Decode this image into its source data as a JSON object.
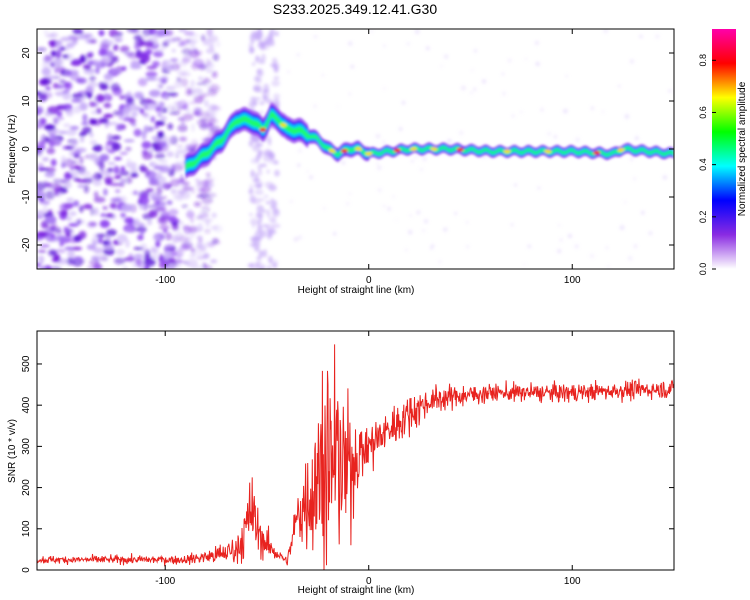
{
  "title": "S233.2025.349.12.41.G30",
  "chart_data": [
    {
      "type": "heatmap",
      "id": "spectrogram",
      "xlabel": "Height of straight line (km)",
      "ylabel": "Frequency (Hz)",
      "xlim": [
        -163,
        150
      ],
      "ylim": [
        -25,
        25
      ],
      "xticks": [
        -100,
        0,
        100
      ],
      "yticks": [
        -20,
        -10,
        0,
        10,
        20
      ],
      "colorbar": {
        "label": "Normalized spectral amplitude",
        "range": [
          0,
          0.92
        ],
        "ticks": [
          "0.0",
          "0.2",
          "0.4",
          "0.6",
          "0.8"
        ],
        "colormap": [
          "#ffffff",
          "#8a2be2",
          "#0000ff",
          "#00ffff",
          "#00ff00",
          "#ffff00",
          "#ff0000",
          "#ff00aa"
        ]
      },
      "ridge": {
        "description": "dominant frequency vs height",
        "x": [
          -90,
          -80,
          -72,
          -65,
          -58,
          -52,
          -48,
          -44,
          -40,
          -35,
          -30,
          -25,
          -20,
          -15,
          -10,
          -5,
          0,
          10,
          20,
          40,
          60,
          80,
          100,
          120,
          125,
          150
        ],
        "y": [
          -4,
          -1,
          2,
          6,
          6,
          4,
          7,
          6,
          4,
          4,
          3,
          2,
          0,
          -1,
          0,
          0,
          -1,
          -0.5,
          0,
          0,
          -0.5,
          -0.5,
          -0.5,
          -1,
          0,
          -1
        ]
      },
      "noise": {
        "x_range": [
          -163,
          -80
        ],
        "vertical_band_x": [
          -58,
          -45
        ]
      }
    },
    {
      "type": "line",
      "id": "snr",
      "xlabel": "Height of straight line (km)",
      "ylabel": "SNR (10 * v/v)",
      "xlim": [
        -163,
        150
      ],
      "ylim": [
        0,
        580
      ],
      "xticks": [
        -100,
        0,
        100
      ],
      "yticks": [
        0,
        100,
        200,
        300,
        400,
        500
      ],
      "color": "#e8231f",
      "envelope": {
        "x": [
          -163,
          -90,
          -75,
          -65,
          -60,
          -58,
          -55,
          -50,
          -45,
          -40,
          -35,
          -30,
          -25,
          -20,
          -15,
          -10,
          -5,
          0,
          10,
          20,
          30,
          40,
          60,
          80,
          100,
          120,
          150
        ],
        "mean": [
          25,
          25,
          35,
          50,
          100,
          150,
          100,
          60,
          40,
          20,
          130,
          180,
          220,
          260,
          260,
          230,
          280,
          300,
          340,
          380,
          410,
          420,
          430,
          430,
          430,
          435,
          440
        ],
        "spread": [
          10,
          12,
          25,
          40,
          80,
          110,
          70,
          40,
          20,
          10,
          90,
          140,
          200,
          250,
          220,
          180,
          80,
          70,
          60,
          50,
          40,
          30,
          25,
          25,
          25,
          25,
          25
        ]
      }
    }
  ]
}
